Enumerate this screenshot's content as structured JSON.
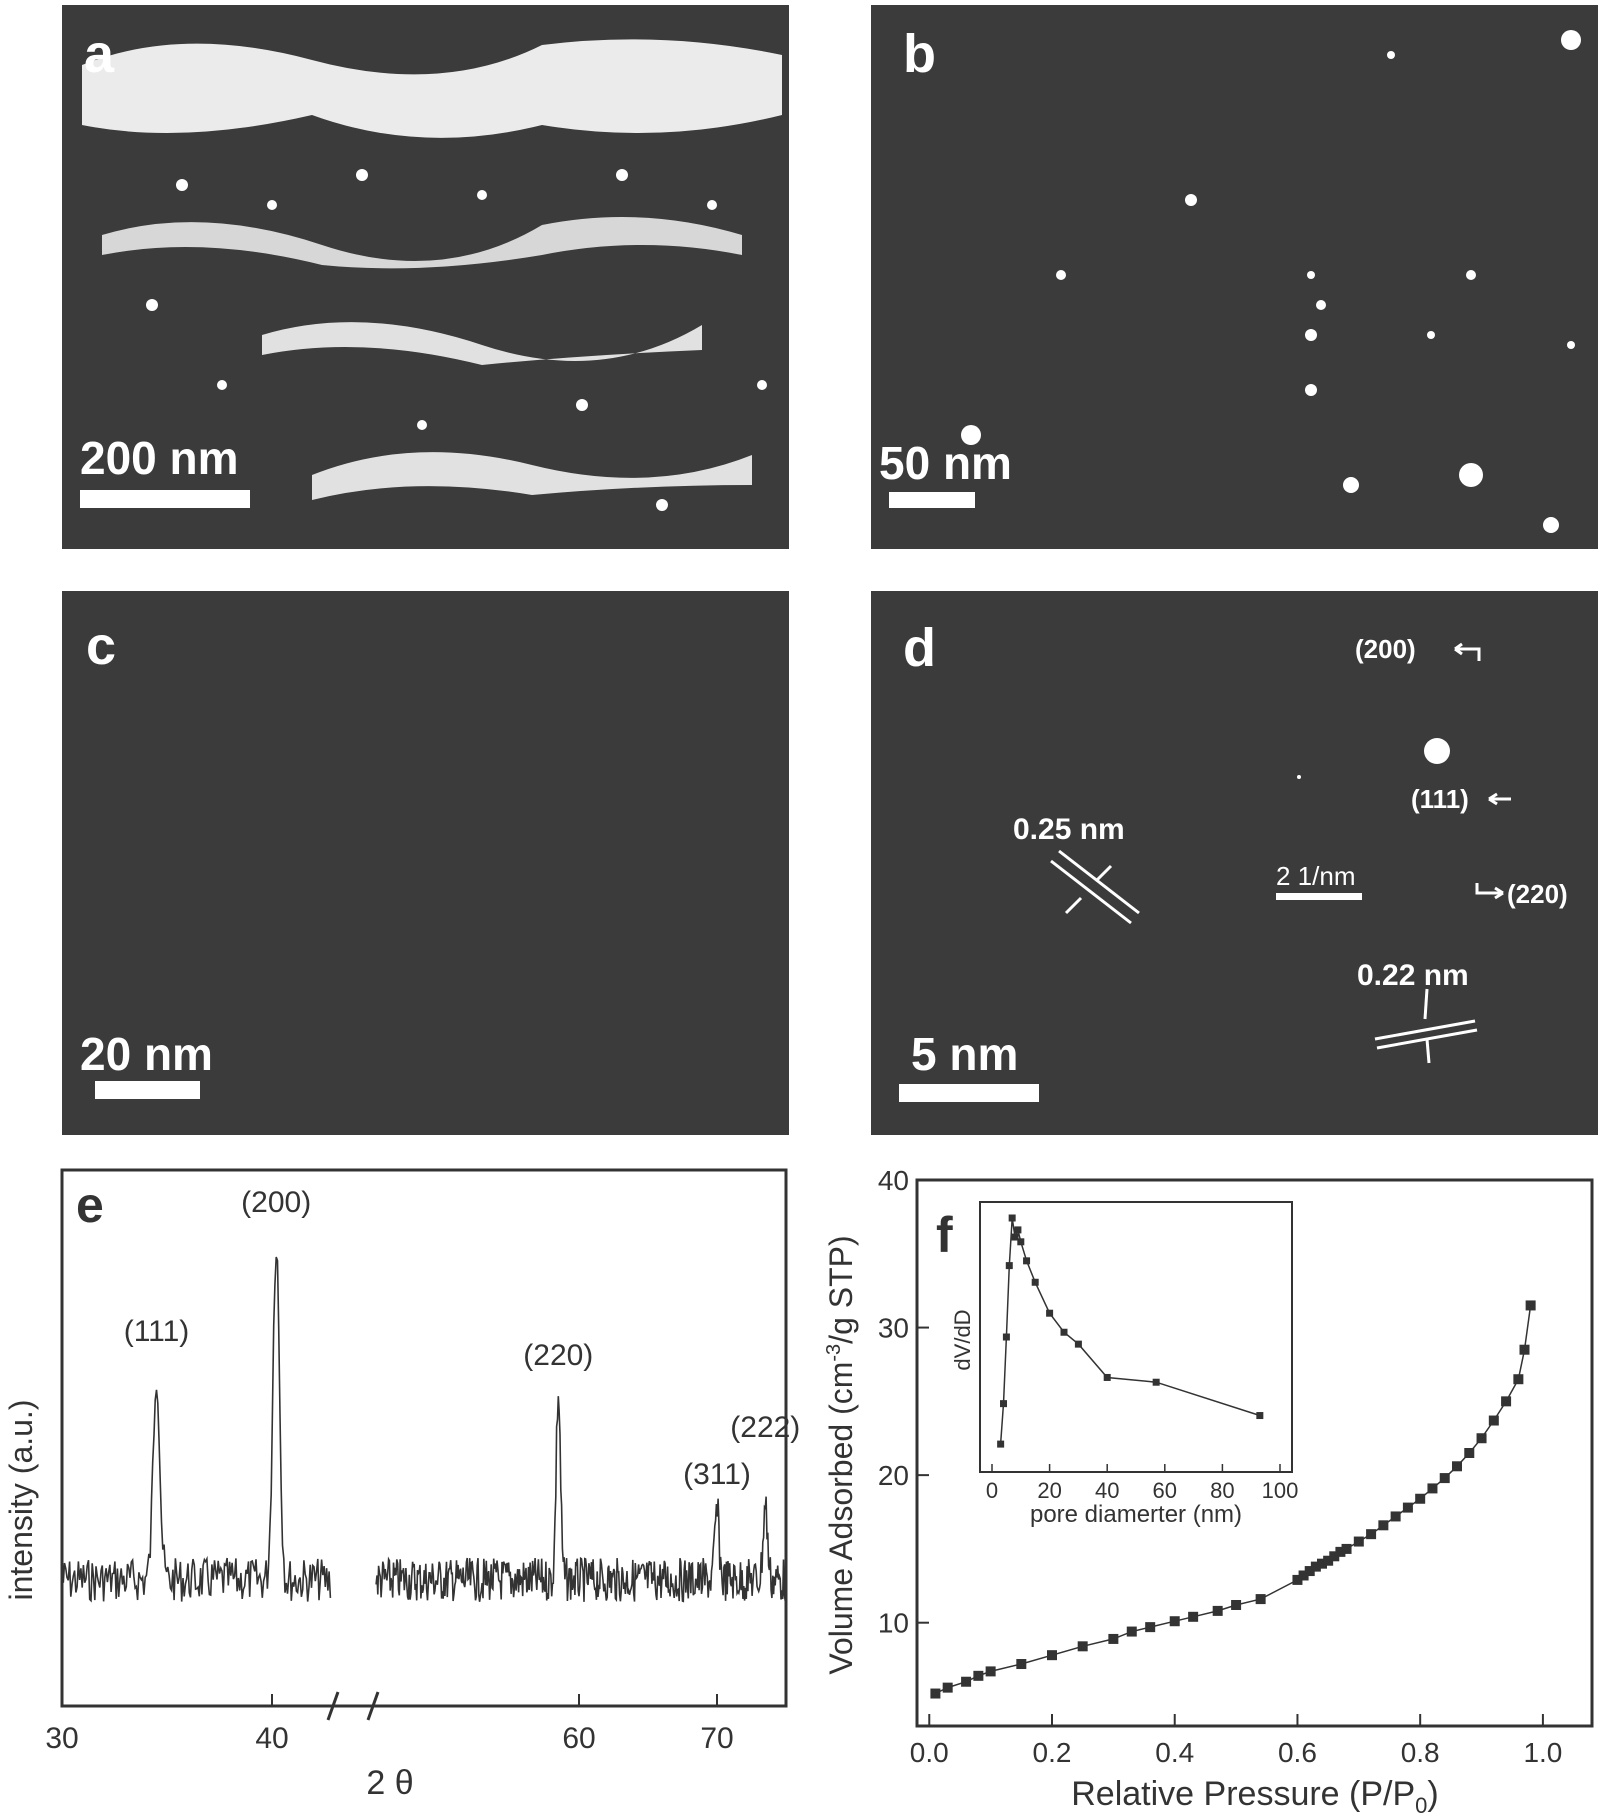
{
  "panels": {
    "a": {
      "letter": "a",
      "scale_label": "200 nm"
    },
    "b": {
      "letter": "b",
      "scale_label": "50 nm"
    },
    "c": {
      "letter": "c",
      "scale_label": "20 nm"
    },
    "d": {
      "letter": "d",
      "scale_label": "5 nm",
      "spacing_1": "0.25 nm",
      "spacing_2": "0.22 nm",
      "saed_scale": "2 1/nm",
      "ring_200": "(200)",
      "ring_111": "(111)",
      "ring_220": "(220)"
    }
  },
  "colors": {
    "tem_background": "#3b3b3b",
    "feature": "#ffffff",
    "plot_line": "#333333"
  },
  "chart_data": [
    {
      "panel": "e",
      "type": "line",
      "letter": "e",
      "xlabel": "2 θ",
      "ylabel": "intensity (a.u.)",
      "xlim": [
        30,
        75
      ],
      "x_ticks": [
        "30",
        "40",
        "60",
        "70"
      ],
      "axis_break": [
        43,
        45
      ],
      "peaks": [
        {
          "label": "(111)",
          "x": 34.5,
          "height": 0.62
        },
        {
          "label": "(200)",
          "x": 40.2,
          "height": 1.0
        },
        {
          "label": "(220)",
          "x": 58.5,
          "height": 0.55
        },
        {
          "label": "(311)",
          "x": 70.0,
          "height": 0.2
        },
        {
          "label": "(222)",
          "x": 73.5,
          "height": 0.22
        }
      ]
    },
    {
      "panel": "f",
      "type": "line",
      "letter": "f",
      "xlabel": "Relative Pressure (P/P",
      "xlabel_sub": "0",
      "xlabel_end": ")",
      "ylabel": "Volume Adsorbed (cm",
      "ylabel_sup": "-3",
      "ylabel_end": "/g STP)",
      "xlim": [
        -0.02,
        1.08
      ],
      "ylim": [
        3,
        40
      ],
      "x_ticks": [
        "0.0",
        "0.2",
        "0.4",
        "0.6",
        "0.8",
        "1.0"
      ],
      "y_ticks": [
        "10",
        "20",
        "30",
        "40"
      ],
      "x": [
        0.01,
        0.03,
        0.06,
        0.08,
        0.1,
        0.15,
        0.2,
        0.25,
        0.3,
        0.33,
        0.36,
        0.4,
        0.43,
        0.47,
        0.5,
        0.54,
        0.6,
        0.61,
        0.62,
        0.63,
        0.64,
        0.65,
        0.66,
        0.67,
        0.68,
        0.7,
        0.72,
        0.74,
        0.76,
        0.78,
        0.8,
        0.82,
        0.84,
        0.86,
        0.88,
        0.9,
        0.92,
        0.94,
        0.96,
        0.97,
        0.98
      ],
      "y": [
        5.2,
        5.6,
        6.0,
        6.4,
        6.7,
        7.2,
        7.8,
        8.4,
        8.9,
        9.4,
        9.7,
        10.1,
        10.4,
        10.8,
        11.2,
        11.6,
        12.9,
        13.2,
        13.5,
        13.8,
        14.0,
        14.2,
        14.5,
        14.8,
        15.0,
        15.5,
        16.0,
        16.6,
        17.2,
        17.8,
        18.4,
        19.1,
        19.8,
        20.6,
        21.5,
        22.5,
        23.7,
        25.0,
        26.5,
        28.5,
        31.5
      ],
      "inset": {
        "xlabel": "pore diamerter (nm)",
        "ylabel": "dV/dD",
        "xlim": [
          0,
          100
        ],
        "x_ticks": [
          "0",
          "20",
          "40",
          "60",
          "80",
          "100"
        ],
        "x": [
          3,
          4,
          5,
          6,
          7,
          8,
          9,
          10,
          12,
          15,
          20,
          25,
          30,
          40,
          57,
          93
        ],
        "y": [
          0.05,
          0.22,
          0.5,
          0.8,
          1.0,
          0.92,
          0.95,
          0.9,
          0.82,
          0.73,
          0.6,
          0.52,
          0.47,
          0.33,
          0.31,
          0.17
        ]
      }
    }
  ]
}
